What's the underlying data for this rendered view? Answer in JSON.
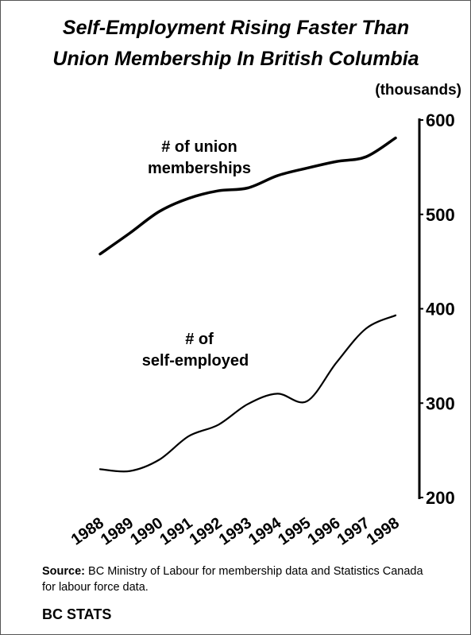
{
  "chart_data": {
    "type": "line",
    "title": [
      "Self-Employment Rising Faster Than",
      "Union Membership In British Columbia"
    ],
    "y_axis_label": "(thousands)",
    "categories": [
      "1988",
      "1989",
      "1990",
      "1991",
      "1992",
      "1993",
      "1994",
      "1995",
      "1996",
      "1997",
      "1998"
    ],
    "series": [
      {
        "name": [
          "# of union",
          "memberships"
        ],
        "color": "#000000",
        "values": [
          458,
          480,
          503,
          517,
          525,
          528,
          541,
          549,
          556,
          561,
          581
        ]
      },
      {
        "name": [
          "# of",
          "self-employed"
        ],
        "color": "#000000",
        "values": [
          230,
          228,
          240,
          265,
          277,
          299,
          310,
          302,
          343,
          379,
          393
        ]
      }
    ],
    "ylim": [
      200,
      600
    ],
    "yticks": [
      200,
      300,
      400,
      500,
      600
    ],
    "grid": false
  },
  "source": {
    "label": "Source:",
    "text": "BC Ministry of Labour for membership data and Statistics Canada for labour force data."
  },
  "footer": "BC STATS"
}
